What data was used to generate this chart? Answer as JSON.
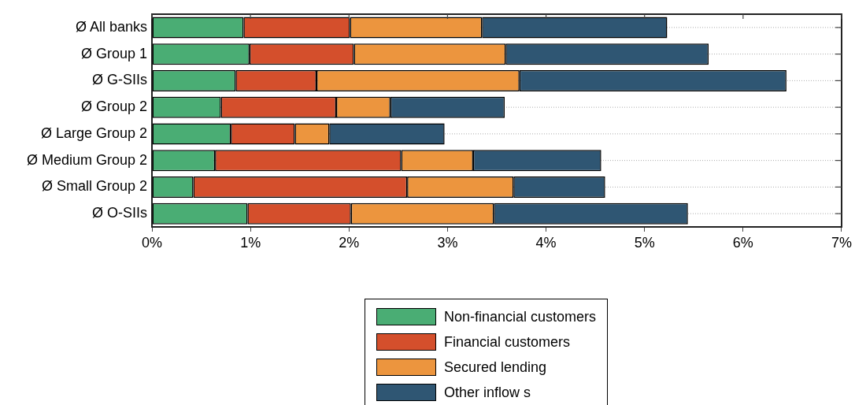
{
  "chart_data": {
    "type": "bar",
    "orientation": "horizontal",
    "stacked": true,
    "categories": [
      "Ø All banks",
      "Ø Group 1",
      "Ø G-SIIs",
      "Ø Group 2",
      "Ø Large Group 2",
      "Ø Medium Group 2",
      "Ø Small Group 2",
      "Ø O-SIIs"
    ],
    "series": [
      {
        "name": "Non-financial customers",
        "color": "#4aad74",
        "values": [
          0.93,
          0.99,
          0.85,
          0.7,
          0.8,
          0.64,
          0.42,
          0.97
        ]
      },
      {
        "name": "Financial customers",
        "color": "#d44f2c",
        "values": [
          1.08,
          1.06,
          0.82,
          1.17,
          0.65,
          1.89,
          2.17,
          1.05
        ]
      },
      {
        "name": "Secured lending",
        "color": "#ec953e",
        "values": [
          1.34,
          1.54,
          2.06,
          0.55,
          0.35,
          0.73,
          1.08,
          1.45
        ]
      },
      {
        "name": "Other inflow s",
        "color": "#2f5673",
        "values": [
          1.88,
          2.06,
          2.71,
          1.16,
          1.17,
          1.3,
          0.93,
          1.97
        ]
      }
    ],
    "xlim": [
      0,
      7
    ],
    "xticks": [
      {
        "value": 0,
        "label": "0%"
      },
      {
        "value": 1,
        "label": "1%"
      },
      {
        "value": 2,
        "label": "2%"
      },
      {
        "value": 3,
        "label": "3%"
      },
      {
        "value": 4,
        "label": "4%"
      },
      {
        "value": 5,
        "label": "5%"
      },
      {
        "value": 6,
        "label": "6%"
      },
      {
        "value": 7,
        "label": "7%"
      }
    ],
    "grid": "y",
    "legend": "bottom"
  }
}
